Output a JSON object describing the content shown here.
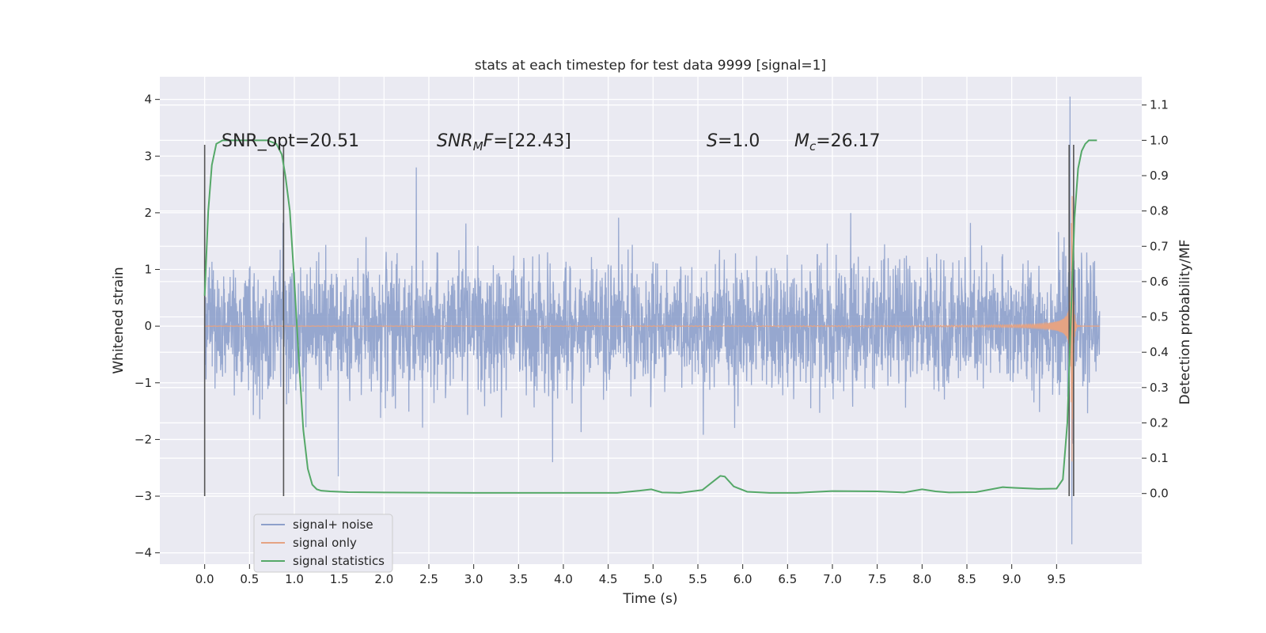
{
  "chart_data": {
    "type": "line",
    "title": "stats at each timestep for test data 9999 [signal=1]",
    "xlabel": "Time (s)",
    "ylabel": "Whitened strain",
    "y2label": "Detection probability/MF",
    "xlim": [
      -0.5,
      10.45
    ],
    "ylim": [
      -4.2,
      4.4
    ],
    "y2lim": [
      -0.2,
      1.18
    ],
    "xticks": [
      0.0,
      0.5,
      1.0,
      1.5,
      2.0,
      2.5,
      3.0,
      3.5,
      4.0,
      4.5,
      5.0,
      5.5,
      6.0,
      6.5,
      7.0,
      7.5,
      8.0,
      8.5,
      9.0,
      9.5
    ],
    "xtick_labels": [
      "0.0",
      "0.5",
      "1.0",
      "1.5",
      "2.0",
      "2.5",
      "3.0",
      "3.5",
      "4.0",
      "4.5",
      "5.0",
      "5.5",
      "6.0",
      "6.5",
      "7.0",
      "7.5",
      "8.0",
      "8.5",
      "9.0",
      "9.5"
    ],
    "yticks": [
      -4,
      -3,
      -2,
      -1,
      0,
      1,
      2,
      3,
      4
    ],
    "ytick_labels": [
      "−4",
      "−3",
      "−2",
      "−1",
      "0",
      "1",
      "2",
      "3",
      "4"
    ],
    "y2ticks": [
      0.0,
      0.1,
      0.2,
      0.3,
      0.4,
      0.5,
      0.6,
      0.7,
      0.8,
      0.9,
      1.0,
      1.1
    ],
    "y2tick_labels": [
      "0.0",
      "0.1",
      "0.2",
      "0.3",
      "0.4",
      "0.5",
      "0.6",
      "0.7",
      "0.8",
      "0.9",
      "1.0",
      "1.1"
    ],
    "grid": true,
    "legend_position": "bottom-left",
    "series": [
      {
        "name": "signal+ noise",
        "color": "#8da0cb",
        "axis": "left",
        "kind": "noisy strain",
        "t_start": 0.0,
        "t_end": 9.98,
        "approx_sigma": 0.55,
        "peaks": [
          {
            "x": 2.36,
            "y": 2.8
          },
          {
            "x": 9.65,
            "y": 4.05
          },
          {
            "x": 9.67,
            "y": -3.85
          },
          {
            "x": 1.49,
            "y": -2.65
          }
        ]
      },
      {
        "name": "signal only",
        "color": "#e5a383",
        "axis": "left",
        "kind": "chirp",
        "t_start": 0.0,
        "t_merger": 9.67,
        "t_end": 9.98,
        "peak_amplitude": 3.2
      },
      {
        "name": "signal statistics",
        "color": "#55a868",
        "axis": "right",
        "x": [
          0.0,
          0.04,
          0.08,
          0.13,
          0.2,
          0.3,
          0.5,
          0.7,
          0.8,
          0.86,
          0.9,
          0.95,
          1.0,
          1.05,
          1.1,
          1.15,
          1.2,
          1.25,
          1.3,
          1.4,
          1.6,
          2.0,
          3.0,
          4.0,
          4.6,
          4.85,
          4.98,
          5.1,
          5.3,
          5.55,
          5.65,
          5.75,
          5.8,
          5.9,
          6.05,
          6.3,
          6.6,
          7.0,
          7.5,
          7.8,
          8.0,
          8.05,
          8.15,
          8.3,
          8.6,
          8.9,
          9.05,
          9.3,
          9.5,
          9.57,
          9.62,
          9.66,
          9.7,
          9.74,
          9.78,
          9.82,
          9.86,
          9.9,
          9.95
        ],
        "values": [
          0.56,
          0.8,
          0.93,
          0.99,
          1.0,
          1.0,
          1.0,
          1.0,
          0.99,
          0.96,
          0.9,
          0.8,
          0.6,
          0.38,
          0.18,
          0.07,
          0.025,
          0.012,
          0.008,
          0.006,
          0.004,
          0.003,
          0.002,
          0.002,
          0.002,
          0.008,
          0.012,
          0.003,
          0.002,
          0.01,
          0.03,
          0.05,
          0.048,
          0.02,
          0.005,
          0.002,
          0.002,
          0.007,
          0.006,
          0.003,
          0.012,
          0.01,
          0.006,
          0.003,
          0.004,
          0.018,
          0.016,
          0.013,
          0.014,
          0.04,
          0.2,
          0.5,
          0.78,
          0.92,
          0.97,
          0.99,
          1.0,
          1.0,
          1.0
        ]
      }
    ],
    "vertical_lines": [
      {
        "x": 0.0,
        "y_from": -3.0,
        "y_to": 3.2
      },
      {
        "x": 0.88,
        "y_from": -3.0,
        "y_to": 3.2
      },
      {
        "x": 9.64,
        "y_from": -3.0,
        "y_to": 3.2
      },
      {
        "x": 9.69,
        "y_from": -3.0,
        "y_to": 3.2
      }
    ],
    "annotations": {
      "snr_opt": "SNR_opt=20.51",
      "snr_mf_label": "SNR",
      "snr_mf_sub": "M",
      "snr_mf_mid": "F",
      "snr_mf_value": "=[22.43]",
      "s_label": "S",
      "s_value": "=1.0",
      "mc_label": "M",
      "mc_sub": "c",
      "mc_value": "=26.17"
    }
  }
}
